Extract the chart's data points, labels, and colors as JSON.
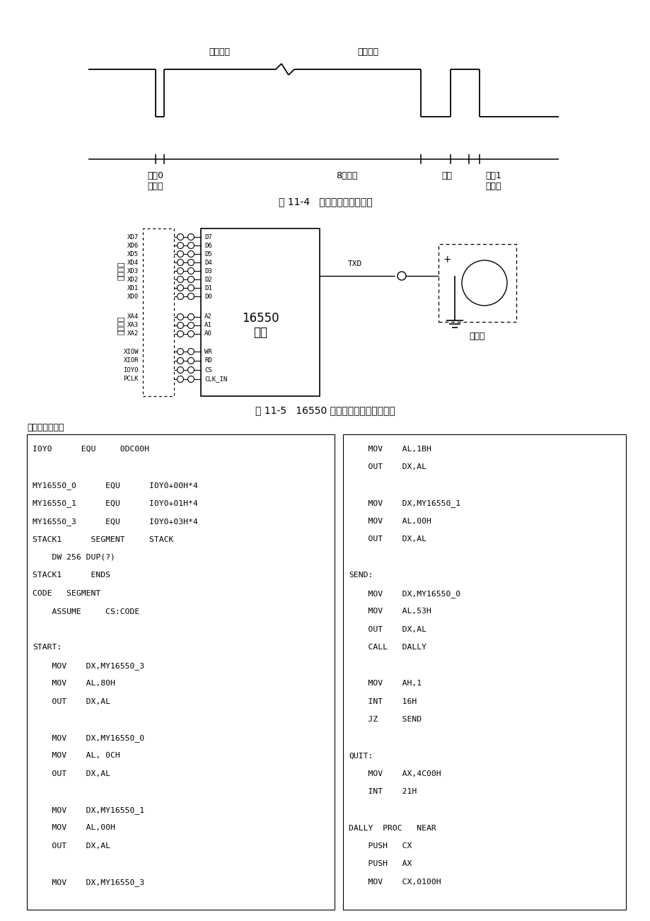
{
  "bg_color": "#ffffff",
  "fig_width": 9.2,
  "fig_height": 13.02,
  "title1": "图 11-4   串行传输的数据格式",
  "title2": "图 11-5   16550 串口应用实验参考接线图",
  "section_title": "【汇编源程序】",
  "label_low_byte": "低位字节",
  "label_high_byte": "高位字节",
  "label_logic0": "逻辑0",
  "label_start": "起始位",
  "label_data8": "8位字符",
  "label_odd_even": "奇偶",
  "label_logic1": "逻辑1",
  "label_stop": "停止位",
  "circuit_left_labels": [
    "XD7",
    "XD6",
    "XD5",
    "XD4",
    "XD3",
    "XD2",
    "XD1",
    "XD0"
  ],
  "circuit_left_labels2": [
    "XA4",
    "XA3",
    "XA2"
  ],
  "circuit_left_labels3": [
    "XIOW",
    "XIOR",
    "IOY0",
    "PCLK"
  ],
  "circuit_right_labels": [
    "D7",
    "D6",
    "D5",
    "D4",
    "D3",
    "D2",
    "D1",
    "D0"
  ],
  "circuit_right_labels2": [
    "A2",
    "A1",
    "A0"
  ],
  "circuit_right_labels3": [
    "WR",
    "RD",
    "CS",
    "CLK_IN"
  ],
  "circuit_vert1": "数据总线",
  "circuit_vert2": "地址总线",
  "ic_label1": "16550",
  "ic_label2": "单元",
  "txd_label": "TXD",
  "osc_label": "示波器",
  "code_left": [
    "I0Y0      EQU     0DC00H",
    "",
    "MY16550_0      EQU      I0Y0+00H*4",
    "MY16550_1      EQU      I0Y0+01H*4",
    "MY16550_3      EQU      I0Y0+03H*4",
    "STACK1      SEGMENT     STACK",
    "    DW 256 DUP(?)",
    "STACK1      ENDS",
    "CODE   SEGMENT",
    "    ASSUME     CS:CODE",
    "",
    "START:",
    "    MOV    DX,MY16550_3",
    "    MOV    AL,80H",
    "    OUT    DX,AL",
    "",
    "    MOV    DX,MY16550_0",
    "    MOV    AL, 0CH",
    "    OUT    DX,AL",
    "",
    "    MOV    DX,MY16550_1",
    "    MOV    AL,00H",
    "    OUT    DX,AL",
    "",
    "    MOV    DX,MY16550_3"
  ],
  "code_right": [
    "    MOV    AL,1BH",
    "    OUT    DX,AL",
    "",
    "    MOV    DX,MY16550_1",
    "    MOV    AL,00H",
    "    OUT    DX,AL",
    "",
    "SEND:",
    "    MOV    DX,MY16550_0",
    "    MOV    AL,53H",
    "    OUT    DX,AL",
    "    CALL   DALLY",
    "",
    "    MOV    AH,1",
    "    INT    16H",
    "    JZ     SEND",
    "",
    "QUIT:",
    "    MOV    AX,4C00H",
    "    INT    21H",
    "",
    "DALLY  PROC   NEAR",
    "    PUSH   CX",
    "    PUSH   AX",
    "    MOV    CX,0100H"
  ]
}
